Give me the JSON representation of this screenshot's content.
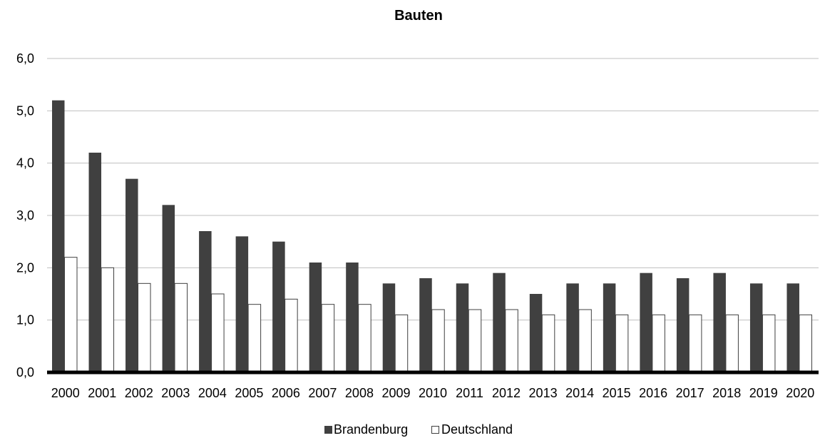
{
  "chart_data": {
    "type": "bar",
    "title": "Bauten",
    "xlabel": "",
    "ylabel": "",
    "categories": [
      "2000",
      "2001",
      "2002",
      "2003",
      "2004",
      "2005",
      "2006",
      "2007",
      "2008",
      "2009",
      "2010",
      "2011",
      "2012",
      "2013",
      "2014",
      "2015",
      "2016",
      "2017",
      "2018",
      "2019",
      "2020"
    ],
    "series": [
      {
        "name": "Brandenburg",
        "color": "#404040",
        "values": [
          5.2,
          4.2,
          3.7,
          3.2,
          2.7,
          2.6,
          2.5,
          2.1,
          2.1,
          1.7,
          1.8,
          1.7,
          1.9,
          1.5,
          1.7,
          1.7,
          1.9,
          1.8,
          1.9,
          1.7,
          1.7
        ]
      },
      {
        "name": "Deutschland",
        "color": "#ffffff",
        "values": [
          2.2,
          2.0,
          1.7,
          1.7,
          1.5,
          1.3,
          1.4,
          1.3,
          1.3,
          1.1,
          1.2,
          1.2,
          1.2,
          1.1,
          1.2,
          1.1,
          1.1,
          1.1,
          1.1,
          1.1,
          1.1
        ]
      }
    ],
    "ylim": [
      0,
      6
    ],
    "yticks": [
      0,
      1,
      2,
      3,
      4,
      5,
      6
    ],
    "ytick_labels": [
      "0,0",
      "1,0",
      "2,0",
      "3,0",
      "4,0",
      "5,0",
      "6,0"
    ],
    "grid": true,
    "legend_position": "bottom-center"
  }
}
